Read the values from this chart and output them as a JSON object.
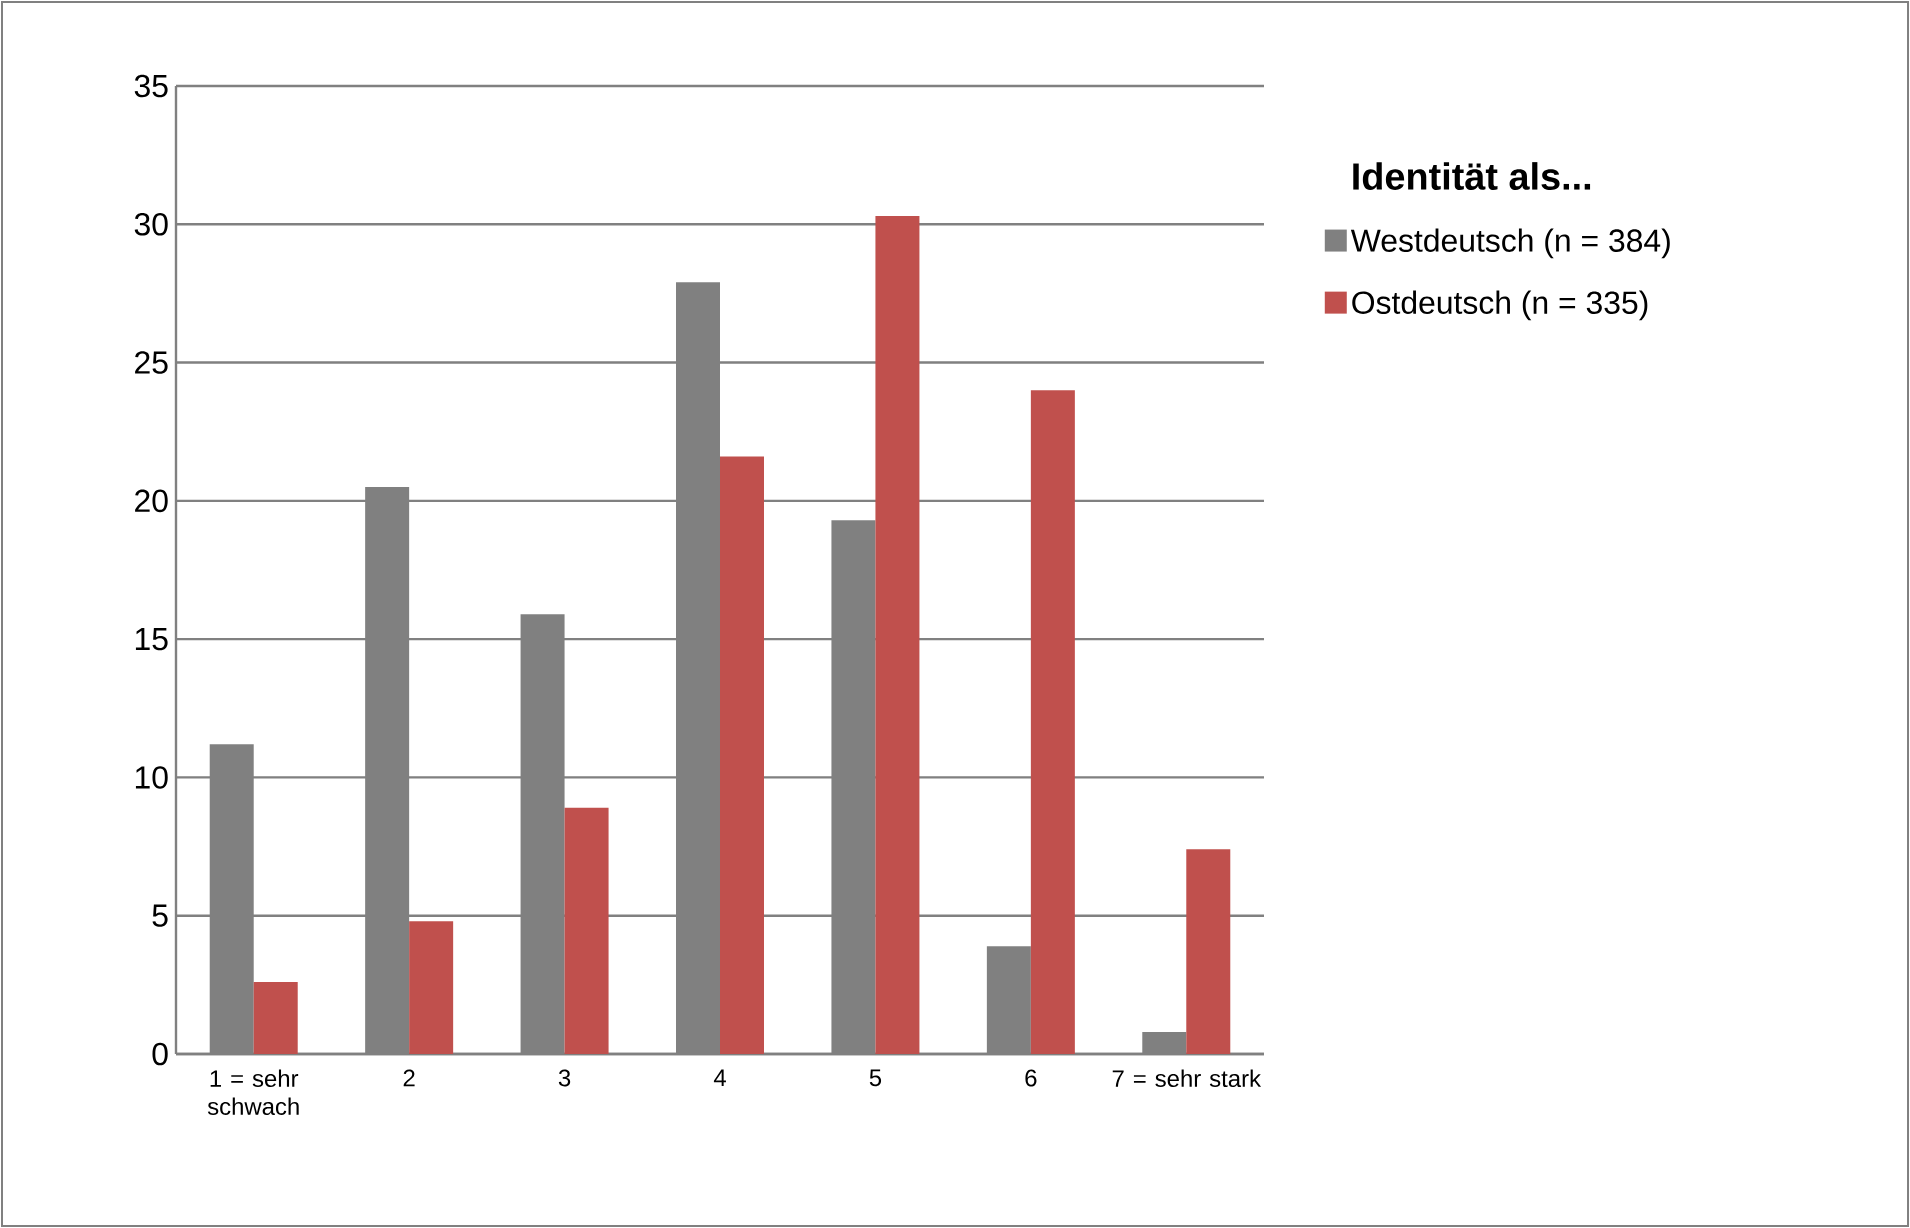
{
  "chart_data": {
    "type": "bar",
    "legend_title": "Identität als...",
    "categories": [
      "1 = sehr schwach",
      "2",
      "3",
      "4",
      "5",
      "6",
      "7 = sehr stark"
    ],
    "series": [
      {
        "name": "Westdeutsch (n = 384)",
        "color": "#808080",
        "values": [
          11.2,
          20.5,
          15.9,
          27.9,
          19.3,
          3.9,
          0.8
        ]
      },
      {
        "name": "Ostdeutsch (n = 335)",
        "color": "#c0504d",
        "values": [
          2.6,
          4.8,
          8.9,
          21.6,
          30.3,
          24.0,
          7.4
        ]
      }
    ],
    "ylim": [
      0,
      35
    ],
    "yticks": [
      0,
      5,
      10,
      15,
      20,
      25,
      30,
      35
    ],
    "grid": "y",
    "legend": "right"
  }
}
